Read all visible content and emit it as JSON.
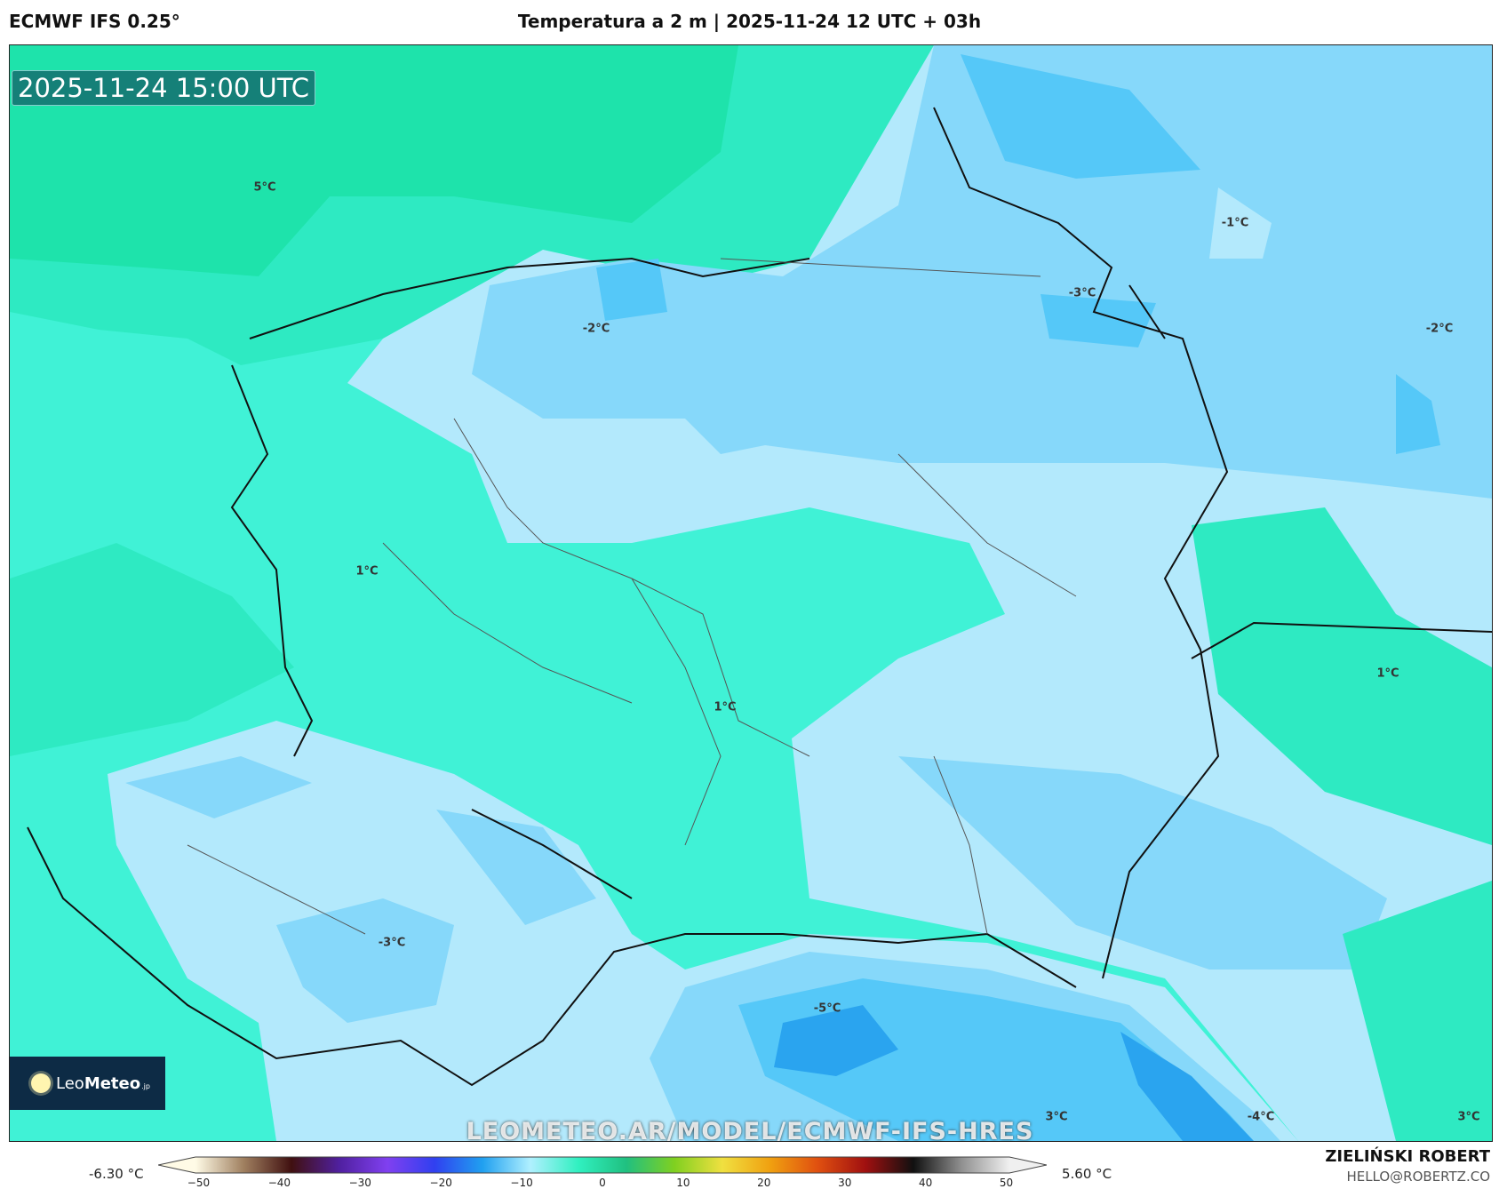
{
  "header": {
    "model": "ECMWF IFS 0.25°",
    "title": "Temperatura a 2 m | 2025-11-24 12 UTC + 03h"
  },
  "map": {
    "valid_time": "2025-11-24 15:00 UTC",
    "watermark": "LEOMETEO.AR/MODEL/ECMWF-IFS-HRES",
    "contour_labels": [
      "5°C",
      "-2°C",
      "-1°C",
      "-3°C",
      "-2°C",
      "1°C",
      "1°C",
      "1°C",
      "-3°C",
      "-5°C",
      "3°C",
      "-4°C",
      "3°C"
    ],
    "colors": {
      "warm_green": "#1ee3ab",
      "green": "#2eeac2",
      "aqua": "#40f2d6",
      "pale_blue": "#b3e9fc",
      "light_blue": "#86d8fa",
      "blue": "#55c8f8",
      "deep_blue": "#2aa4ef"
    }
  },
  "logo": {
    "part1": "Leo",
    "part2": "Meteo",
    "part3": ".jp"
  },
  "colorbar": {
    "min_label": "-6.30 °C",
    "max_label": "5.60 °C",
    "ticks": [
      "−50",
      "−40",
      "−30",
      "−20",
      "−10",
      "0",
      "10",
      "20",
      "30",
      "40",
      "50"
    ],
    "range": [
      -55,
      55
    ],
    "stops": [
      "#fffbe6",
      "#a08060",
      "#401010",
      "#5020a0",
      "#8040f0",
      "#3040f0",
      "#20a0f0",
      "#b0f0ff",
      "#30f0c0",
      "#20c080",
      "#80d020",
      "#f0e040",
      "#f0a010",
      "#e05010",
      "#a01010",
      "#101010",
      "#909090",
      "#f0f0f0"
    ]
  },
  "credits": {
    "author": "ZIELIŃSKI ROBERT",
    "email": "HELLO@ROBERTZ.CO"
  }
}
